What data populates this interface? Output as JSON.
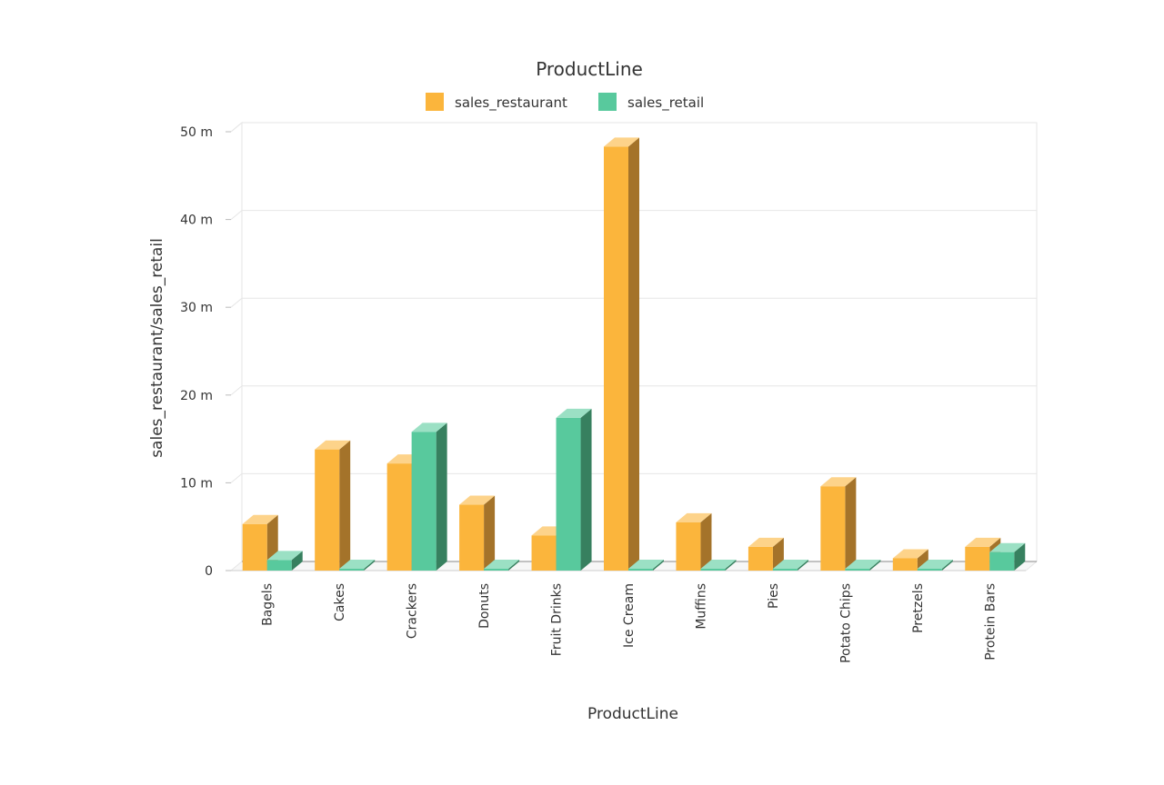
{
  "chart_data": {
    "type": "bar",
    "title": "ProductLine",
    "xlabel": "ProductLine",
    "ylabel": "sales_restaurant/sales_retail",
    "categories": [
      "Bagels",
      "Cakes",
      "Crackers",
      "Donuts",
      "Fruit Drinks",
      "Ice Cream",
      "Muffins",
      "Pies",
      "Potato Chips",
      "Pretzels",
      "Protein Bars"
    ],
    "series": [
      {
        "name": "sales_restaurant",
        "color": "#fbb53c",
        "side_color": "#a4732a",
        "top_color": "#fdd38a",
        "values": [
          5.3,
          13.8,
          12.2,
          7.5,
          4.0,
          48.3,
          5.5,
          2.7,
          9.6,
          1.4,
          2.7
        ]
      },
      {
        "name": "sales_retail",
        "color": "#58c99d",
        "side_color": "#37805f",
        "top_color": "#9be0c4",
        "values": [
          1.2,
          0.05,
          15.8,
          0.05,
          17.4,
          0.05,
          0.05,
          0.05,
          0.05,
          0.05,
          2.1
        ]
      }
    ],
    "ylim": [
      0,
      50
    ],
    "yticks": [
      0,
      10,
      20,
      30,
      40,
      50
    ],
    "ytick_labels": [
      "0",
      "10 m",
      "20 m",
      "30 m",
      "40 m",
      "50 m"
    ],
    "grid": true,
    "legend_position": "top-center"
  }
}
